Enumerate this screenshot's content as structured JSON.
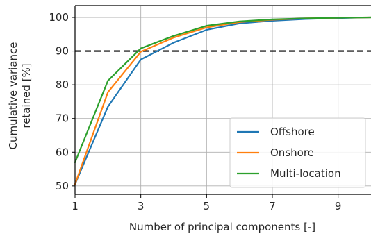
{
  "chart_data": {
    "type": "line",
    "xlabel": "Number of principal components [-]",
    "ylabel": [
      "Cumulative variance",
      "retained [%]"
    ],
    "x": [
      1,
      2,
      3,
      4,
      5,
      6,
      7,
      8,
      9,
      10
    ],
    "xlim": [
      1,
      10
    ],
    "ylim": [
      47.5,
      103.5
    ],
    "xticks": [
      "1",
      "3",
      "5",
      "7",
      "9"
    ],
    "yticks": [
      "50",
      "60",
      "70",
      "80",
      "90",
      "100"
    ],
    "grid": true,
    "legend_position": "lower-right",
    "reference_line": {
      "y": 90,
      "style": "dashed",
      "color": "#000000"
    },
    "series": [
      {
        "name": "Offshore",
        "color": "#1f77b4",
        "values": [
          50.5,
          73.5,
          87.5,
          92.5,
          96.3,
          98.2,
          99.0,
          99.5,
          99.8,
          100.0
        ]
      },
      {
        "name": "Onshore",
        "color": "#ff7f0e",
        "values": [
          50.5,
          77.8,
          89.8,
          94.0,
          97.0,
          98.6,
          99.3,
          99.7,
          99.9,
          100.0
        ]
      },
      {
        "name": "Multi-location",
        "color": "#2ca02c",
        "values": [
          57.0,
          81.2,
          90.8,
          94.5,
          97.5,
          98.8,
          99.4,
          99.7,
          99.9,
          100.0
        ]
      }
    ]
  }
}
